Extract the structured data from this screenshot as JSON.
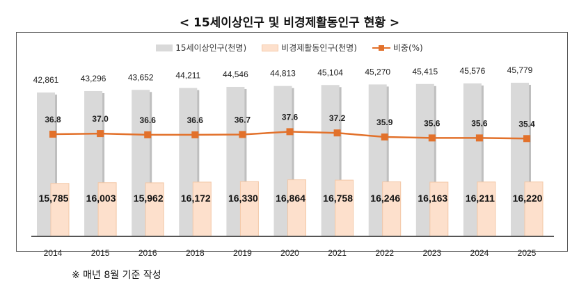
{
  "chart_data": {
    "type": "bar",
    "title": "< 15세이상인구 및 비경제활동인구 현황 >",
    "categories": [
      "2014",
      "2015",
      "2016",
      "2018",
      "2019",
      "2020",
      "2021",
      "2022",
      "2023",
      "2024",
      "2025"
    ],
    "series": [
      {
        "name": "15세이상인구(천명)",
        "type": "bar",
        "color": "#d9d9d9",
        "values": [
          42861,
          43296,
          43652,
          44211,
          44546,
          44813,
          45104,
          45270,
          45415,
          45576,
          45779
        ],
        "labels": [
          "42,861",
          "43,296",
          "43,652",
          "44,211",
          "44,546",
          "44,813",
          "45,104",
          "45,270",
          "45,415",
          "45,576",
          "45,779"
        ]
      },
      {
        "name": "비경제활동인구(천명)",
        "type": "bar",
        "color": "#fde0cc",
        "values": [
          15785,
          16003,
          15962,
          16172,
          16330,
          16864,
          16758,
          16246,
          16163,
          16211,
          16220
        ],
        "labels": [
          "15,785",
          "16,003",
          "15,962",
          "16,172",
          "16,330",
          "16,864",
          "16,758",
          "16,246",
          "16,163",
          "16,211",
          "16,220"
        ]
      },
      {
        "name": "비중(%)",
        "type": "line",
        "color": "#e2712b",
        "values": [
          36.8,
          37.0,
          36.6,
          36.6,
          36.7,
          37.6,
          37.2,
          35.9,
          35.6,
          35.6,
          35.4
        ],
        "labels": [
          "36.8",
          "37.0",
          "36.6",
          "36.6",
          "36.7",
          "37.6",
          "37.2",
          "35.9",
          "35.6",
          "35.6",
          "35.4"
        ]
      }
    ],
    "legend": "top",
    "grid": false
  },
  "note": "※ 매년 8월 기준 작성"
}
